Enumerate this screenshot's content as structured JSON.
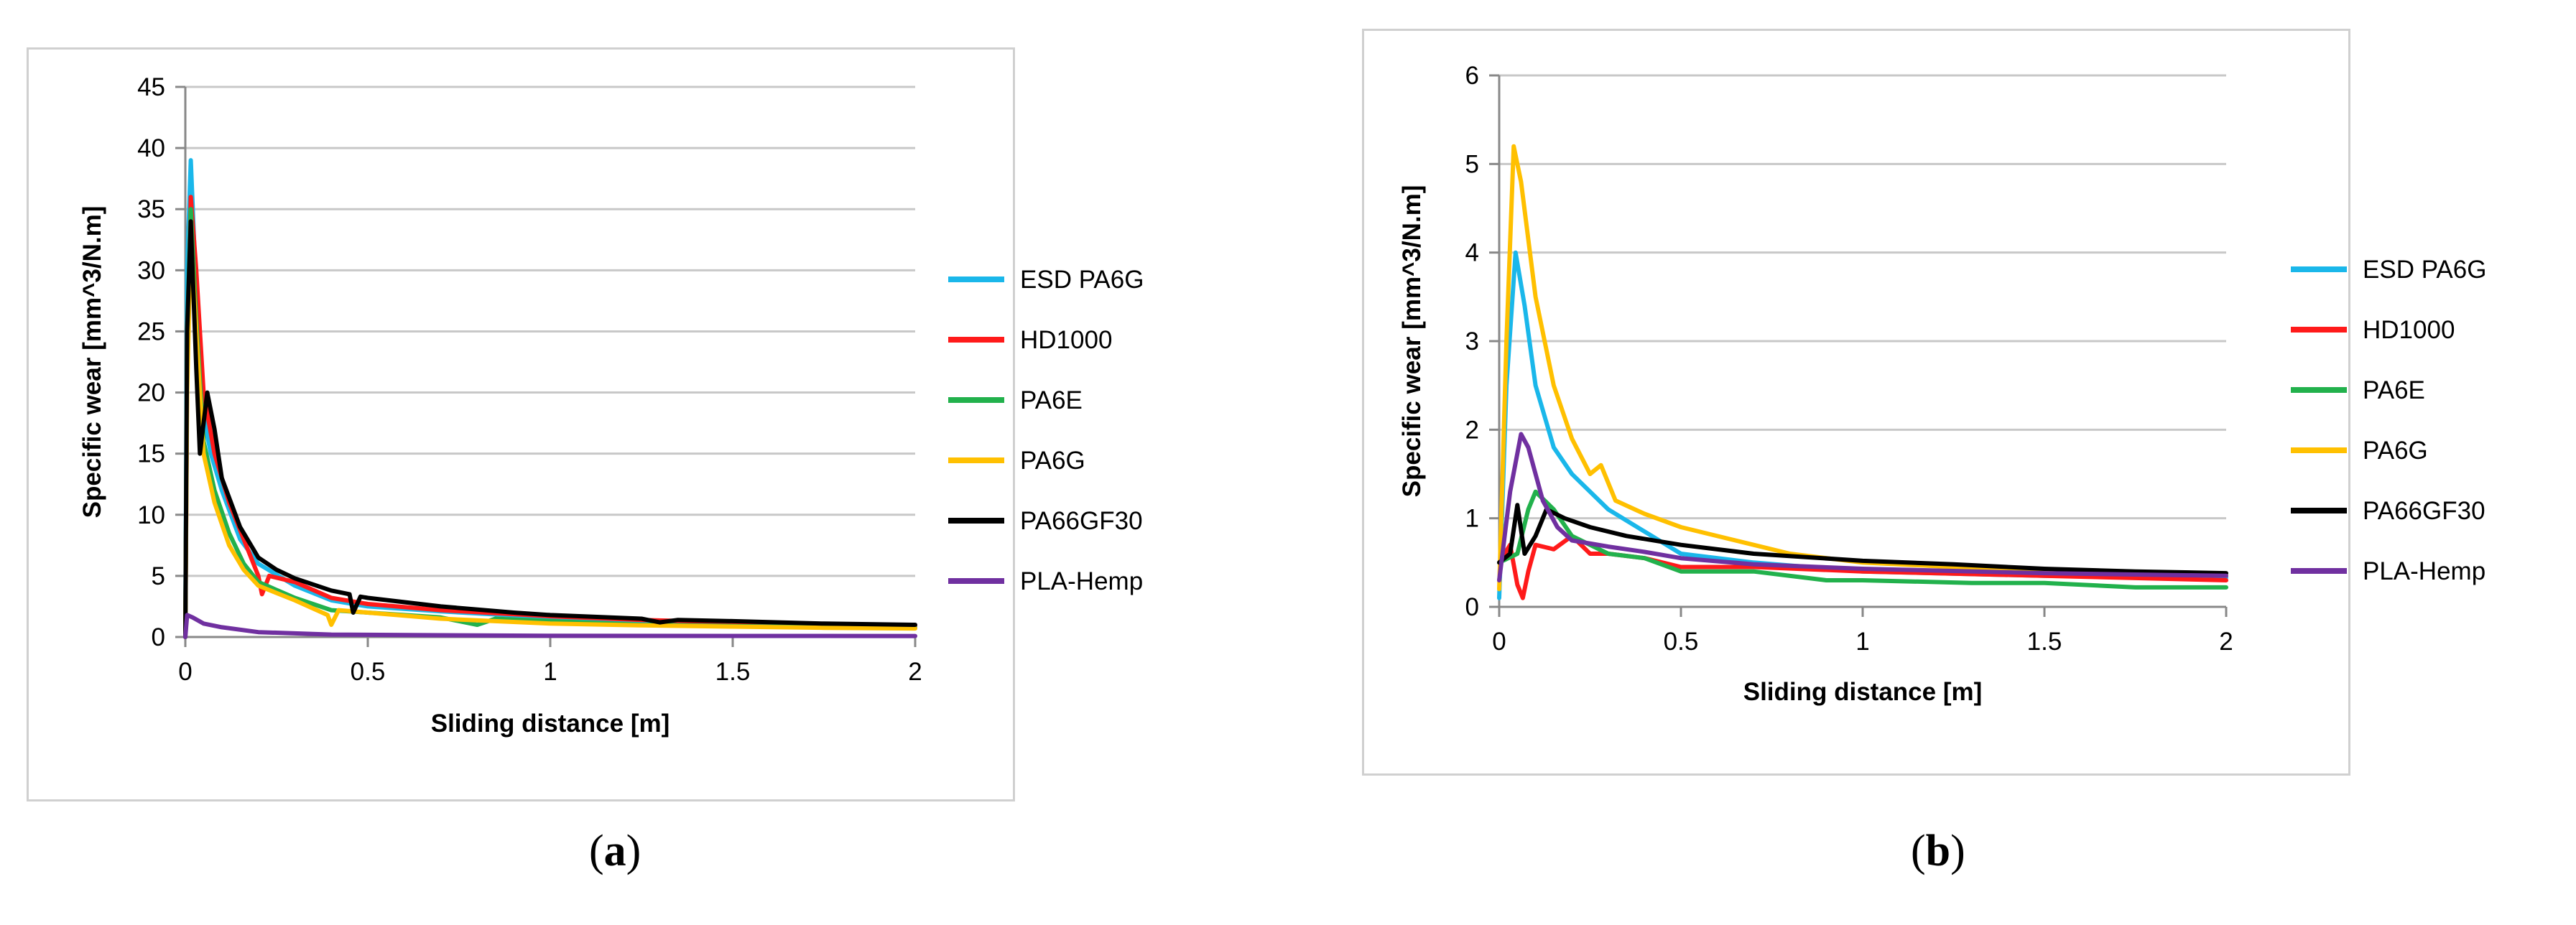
{
  "colors": {
    "ESD PA6G": "#1ab7ea",
    "HD1000": "#ff1a1a",
    "PA6E": "#22b14c",
    "PA6G": "#ffc000",
    "PA66GF30": "#000000",
    "PLA-Hemp": "#7030a0",
    "grid": "#c8c8c8",
    "axis": "#888888"
  },
  "captions": {
    "a_prefix": "(",
    "a_letter": "a",
    "a_suffix": ")",
    "b_prefix": "(",
    "b_letter": "b",
    "b_suffix": ")"
  },
  "chart_data": [
    {
      "type": "line",
      "panel": "a",
      "title": "",
      "xlabel": "Sliding distance [m]",
      "ylabel": "Specific wear [mm^3/N.m]",
      "xlim": [
        0,
        2
      ],
      "ylim": [
        0,
        45
      ],
      "xticks": [
        0,
        0.5,
        1,
        1.5,
        2
      ],
      "xtick_labels": [
        "0",
        "0.5",
        "1",
        "1.5",
        "2"
      ],
      "yticks": [
        0,
        5,
        10,
        15,
        20,
        25,
        30,
        35,
        40,
        45
      ],
      "ytick_labels": [
        "0",
        "5",
        "10",
        "15",
        "20",
        "25",
        "30",
        "35",
        "40",
        "45"
      ],
      "grid": true,
      "legend_position": "right",
      "series": [
        {
          "name": "ESD PA6G",
          "points": [
            [
              0,
              0
            ],
            [
              0.005,
              30
            ],
            [
              0.015,
              39
            ],
            [
              0.03,
              28
            ],
            [
              0.05,
              18
            ],
            [
              0.07,
              15
            ],
            [
              0.1,
              12
            ],
            [
              0.15,
              8
            ],
            [
              0.2,
              6
            ],
            [
              0.3,
              4.2
            ],
            [
              0.4,
              3
            ],
            [
              0.5,
              2.5
            ],
            [
              0.7,
              2.1
            ],
            [
              1,
              1.6
            ],
            [
              1.25,
              1.3
            ],
            [
              1.5,
              1.1
            ],
            [
              1.75,
              1
            ],
            [
              2,
              0.9
            ]
          ]
        },
        {
          "name": "HD1000",
          "points": [
            [
              0,
              0
            ],
            [
              0.005,
              22
            ],
            [
              0.015,
              36
            ],
            [
              0.03,
              30
            ],
            [
              0.05,
              20
            ],
            [
              0.08,
              15
            ],
            [
              0.12,
              11
            ],
            [
              0.16,
              8
            ],
            [
              0.2,
              5
            ],
            [
              0.21,
              3.5
            ],
            [
              0.23,
              5
            ],
            [
              0.3,
              4.5
            ],
            [
              0.4,
              3.2
            ],
            [
              0.5,
              2.7
            ],
            [
              0.7,
              2.2
            ],
            [
              1,
              1.7
            ],
            [
              1.25,
              1.4
            ],
            [
              1.5,
              1.2
            ],
            [
              1.75,
              1
            ],
            [
              2,
              0.95
            ]
          ]
        },
        {
          "name": "PA6E",
          "points": [
            [
              0,
              0
            ],
            [
              0.005,
              25
            ],
            [
              0.015,
              35
            ],
            [
              0.03,
              26
            ],
            [
              0.05,
              16
            ],
            [
              0.08,
              12
            ],
            [
              0.12,
              8.5
            ],
            [
              0.16,
              6
            ],
            [
              0.2,
              4.5
            ],
            [
              0.3,
              3.2
            ],
            [
              0.4,
              2.2
            ],
            [
              0.5,
              2
            ],
            [
              0.7,
              1.6
            ],
            [
              0.8,
              1
            ],
            [
              0.85,
              1.5
            ],
            [
              1,
              1.3
            ],
            [
              1.25,
              1
            ],
            [
              1.5,
              0.9
            ],
            [
              1.75,
              0.8
            ],
            [
              2,
              0.75
            ]
          ]
        },
        {
          "name": "PA6G",
          "points": [
            [
              0,
              0
            ],
            [
              0.005,
              20
            ],
            [
              0.015,
              33
            ],
            [
              0.03,
              25
            ],
            [
              0.05,
              15
            ],
            [
              0.08,
              11
            ],
            [
              0.12,
              7.5
            ],
            [
              0.16,
              5.5
            ],
            [
              0.2,
              4.2
            ],
            [
              0.3,
              3
            ],
            [
              0.39,
              1.8
            ],
            [
              0.4,
              1
            ],
            [
              0.42,
              2.2
            ],
            [
              0.5,
              2
            ],
            [
              0.7,
              1.5
            ],
            [
              1,
              1.1
            ],
            [
              1.25,
              0.95
            ],
            [
              1.5,
              0.85
            ],
            [
              1.75,
              0.75
            ],
            [
              2,
              0.7
            ]
          ]
        },
        {
          "name": "PA66GF30",
          "points": [
            [
              0,
              0
            ],
            [
              0.005,
              25
            ],
            [
              0.015,
              34
            ],
            [
              0.03,
              22
            ],
            [
              0.04,
              15
            ],
            [
              0.06,
              20
            ],
            [
              0.08,
              17
            ],
            [
              0.1,
              13
            ],
            [
              0.15,
              9
            ],
            [
              0.2,
              6.5
            ],
            [
              0.25,
              5.5
            ],
            [
              0.3,
              4.8
            ],
            [
              0.4,
              3.8
            ],
            [
              0.45,
              3.5
            ],
            [
              0.46,
              2
            ],
            [
              0.48,
              3.3
            ],
            [
              0.5,
              3.2
            ],
            [
              0.7,
              2.5
            ],
            [
              0.9,
              2
            ],
            [
              1,
              1.8
            ],
            [
              1.25,
              1.5
            ],
            [
              1.3,
              1.2
            ],
            [
              1.35,
              1.4
            ],
            [
              1.5,
              1.3
            ],
            [
              1.75,
              1.1
            ],
            [
              2,
              1
            ]
          ]
        },
        {
          "name": "PLA-Hemp",
          "points": [
            [
              0,
              0
            ],
            [
              0.005,
              1.8
            ],
            [
              0.02,
              1.6
            ],
            [
              0.05,
              1.1
            ],
            [
              0.1,
              0.8
            ],
            [
              0.2,
              0.4
            ],
            [
              0.4,
              0.2
            ],
            [
              1,
              0.1
            ],
            [
              2,
              0.08
            ]
          ]
        }
      ]
    },
    {
      "type": "line",
      "panel": "b",
      "title": "",
      "xlabel": "Sliding distance [m]",
      "ylabel": "Specific wear [mm^3/N.m]",
      "xlim": [
        0,
        2
      ],
      "ylim": [
        0,
        6
      ],
      "xticks": [
        0,
        0.5,
        1,
        1.5,
        2
      ],
      "xtick_labels": [
        "0",
        "0.5",
        "1",
        "1.5",
        "2"
      ],
      "yticks": [
        0,
        1,
        2,
        3,
        4,
        5,
        6
      ],
      "ytick_labels": [
        "0",
        "1",
        "2",
        "3",
        "4",
        "5",
        "6"
      ],
      "grid": true,
      "legend_position": "right",
      "series": [
        {
          "name": "ESD PA6G",
          "points": [
            [
              0,
              0.1
            ],
            [
              0.02,
              2.5
            ],
            [
              0.045,
              4
            ],
            [
              0.07,
              3.4
            ],
            [
              0.1,
              2.5
            ],
            [
              0.15,
              1.8
            ],
            [
              0.2,
              1.5
            ],
            [
              0.3,
              1.1
            ],
            [
              0.4,
              0.85
            ],
            [
              0.5,
              0.6
            ],
            [
              0.7,
              0.5
            ],
            [
              1,
              0.4
            ],
            [
              1.5,
              0.35
            ],
            [
              2,
              0.33
            ]
          ]
        },
        {
          "name": "HD1000",
          "points": [
            [
              0,
              0.5
            ],
            [
              0.03,
              0.7
            ],
            [
              0.05,
              0.25
            ],
            [
              0.065,
              0.1
            ],
            [
              0.08,
              0.4
            ],
            [
              0.1,
              0.7
            ],
            [
              0.15,
              0.65
            ],
            [
              0.2,
              0.8
            ],
            [
              0.25,
              0.6
            ],
            [
              0.3,
              0.6
            ],
            [
              0.4,
              0.55
            ],
            [
              0.5,
              0.45
            ],
            [
              0.7,
              0.45
            ],
            [
              1,
              0.4
            ],
            [
              1.5,
              0.35
            ],
            [
              2,
              0.3
            ]
          ]
        },
        {
          "name": "PA6E",
          "points": [
            [
              0,
              0.5
            ],
            [
              0.05,
              0.6
            ],
            [
              0.08,
              1.1
            ],
            [
              0.1,
              1.3
            ],
            [
              0.15,
              1.1
            ],
            [
              0.2,
              0.8
            ],
            [
              0.3,
              0.6
            ],
            [
              0.4,
              0.55
            ],
            [
              0.5,
              0.4
            ],
            [
              0.7,
              0.4
            ],
            [
              0.9,
              0.3
            ],
            [
              1,
              0.3
            ],
            [
              1.3,
              0.27
            ],
            [
              1.5,
              0.27
            ],
            [
              1.75,
              0.22
            ],
            [
              2,
              0.22
            ]
          ]
        },
        {
          "name": "PA6G",
          "points": [
            [
              0,
              0.2
            ],
            [
              0.02,
              3
            ],
            [
              0.04,
              5.2
            ],
            [
              0.06,
              4.8
            ],
            [
              0.1,
              3.5
            ],
            [
              0.15,
              2.5
            ],
            [
              0.2,
              1.9
            ],
            [
              0.25,
              1.5
            ],
            [
              0.28,
              1.6
            ],
            [
              0.32,
              1.2
            ],
            [
              0.4,
              1.05
            ],
            [
              0.5,
              0.9
            ],
            [
              0.7,
              0.7
            ],
            [
              0.8,
              0.6
            ],
            [
              1,
              0.5
            ],
            [
              1.5,
              0.4
            ],
            [
              2,
              0.35
            ]
          ]
        },
        {
          "name": "PA66GF30",
          "points": [
            [
              0,
              0.5
            ],
            [
              0.03,
              0.6
            ],
            [
              0.05,
              1.15
            ],
            [
              0.07,
              0.6
            ],
            [
              0.1,
              0.8
            ],
            [
              0.13,
              1.1
            ],
            [
              0.18,
              1
            ],
            [
              0.25,
              0.9
            ],
            [
              0.35,
              0.8
            ],
            [
              0.5,
              0.7
            ],
            [
              0.7,
              0.6
            ],
            [
              1,
              0.52
            ],
            [
              1.25,
              0.48
            ],
            [
              1.5,
              0.43
            ],
            [
              1.75,
              0.4
            ],
            [
              2,
              0.38
            ]
          ]
        },
        {
          "name": "PLA-Hemp",
          "points": [
            [
              0,
              0.3
            ],
            [
              0.03,
              1.3
            ],
            [
              0.06,
              1.95
            ],
            [
              0.08,
              1.8
            ],
            [
              0.12,
              1.2
            ],
            [
              0.16,
              0.9
            ],
            [
              0.2,
              0.75
            ],
            [
              0.3,
              0.68
            ],
            [
              0.4,
              0.62
            ],
            [
              0.5,
              0.55
            ],
            [
              0.7,
              0.48
            ],
            [
              1,
              0.43
            ],
            [
              1.5,
              0.38
            ],
            [
              2,
              0.35
            ]
          ]
        }
      ]
    }
  ]
}
